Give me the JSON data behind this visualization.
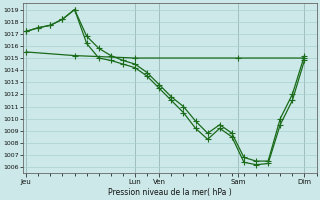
{
  "xlabel": "Pression niveau de la mer( hPa )",
  "bg_color": "#cce8e8",
  "grid_color": "#a8d0d0",
  "line_color": "#1a6b1a",
  "ylim": [
    1005.5,
    1019.5
  ],
  "yticks": [
    1006,
    1007,
    1008,
    1009,
    1010,
    1011,
    1012,
    1013,
    1014,
    1015,
    1016,
    1017,
    1018,
    1019
  ],
  "day_labels": [
    "Jeu",
    "Lun",
    "Ven",
    "Sam",
    "Dim"
  ],
  "day_positions": [
    0.0,
    9.0,
    11.0,
    17.5,
    23.0
  ],
  "xlim": [
    -0.3,
    24.0
  ],
  "series1_x": [
    0,
    1,
    2,
    3,
    4,
    5,
    6,
    7,
    8,
    9,
    10,
    11,
    12,
    13,
    14,
    15,
    16,
    17,
    18,
    19,
    20,
    21,
    22,
    23
  ],
  "series1_y": [
    1017.2,
    1017.5,
    1017.7,
    1018.2,
    1019.0,
    1016.2,
    1015.0,
    1014.8,
    1014.5,
    1014.2,
    1013.5,
    1012.5,
    1011.5,
    1010.5,
    1009.2,
    1008.3,
    1009.2,
    1008.5,
    1006.4,
    1006.2,
    1006.3,
    1009.5,
    1011.5,
    1014.8
  ],
  "series2_x": [
    0,
    1,
    2,
    3,
    4,
    5,
    6,
    7,
    8,
    9,
    10,
    11,
    12,
    13,
    14,
    15,
    16,
    17,
    18,
    19,
    20,
    21,
    22,
    23
  ],
  "series2_y": [
    1017.2,
    1017.5,
    1017.7,
    1018.2,
    1019.0,
    1016.8,
    1015.8,
    1015.2,
    1014.8,
    1014.5,
    1013.8,
    1012.8,
    1011.8,
    1011.0,
    1009.8,
    1008.8,
    1009.5,
    1008.8,
    1006.8,
    1006.5,
    1006.5,
    1010.0,
    1012.0,
    1015.2
  ],
  "series3_x": [
    0,
    4,
    9,
    17.5,
    23
  ],
  "series3_y": [
    1015.5,
    1015.2,
    1015.0,
    1015.0,
    1015.0
  ],
  "marker": "+",
  "markersize": 4,
  "linewidth": 0.9
}
